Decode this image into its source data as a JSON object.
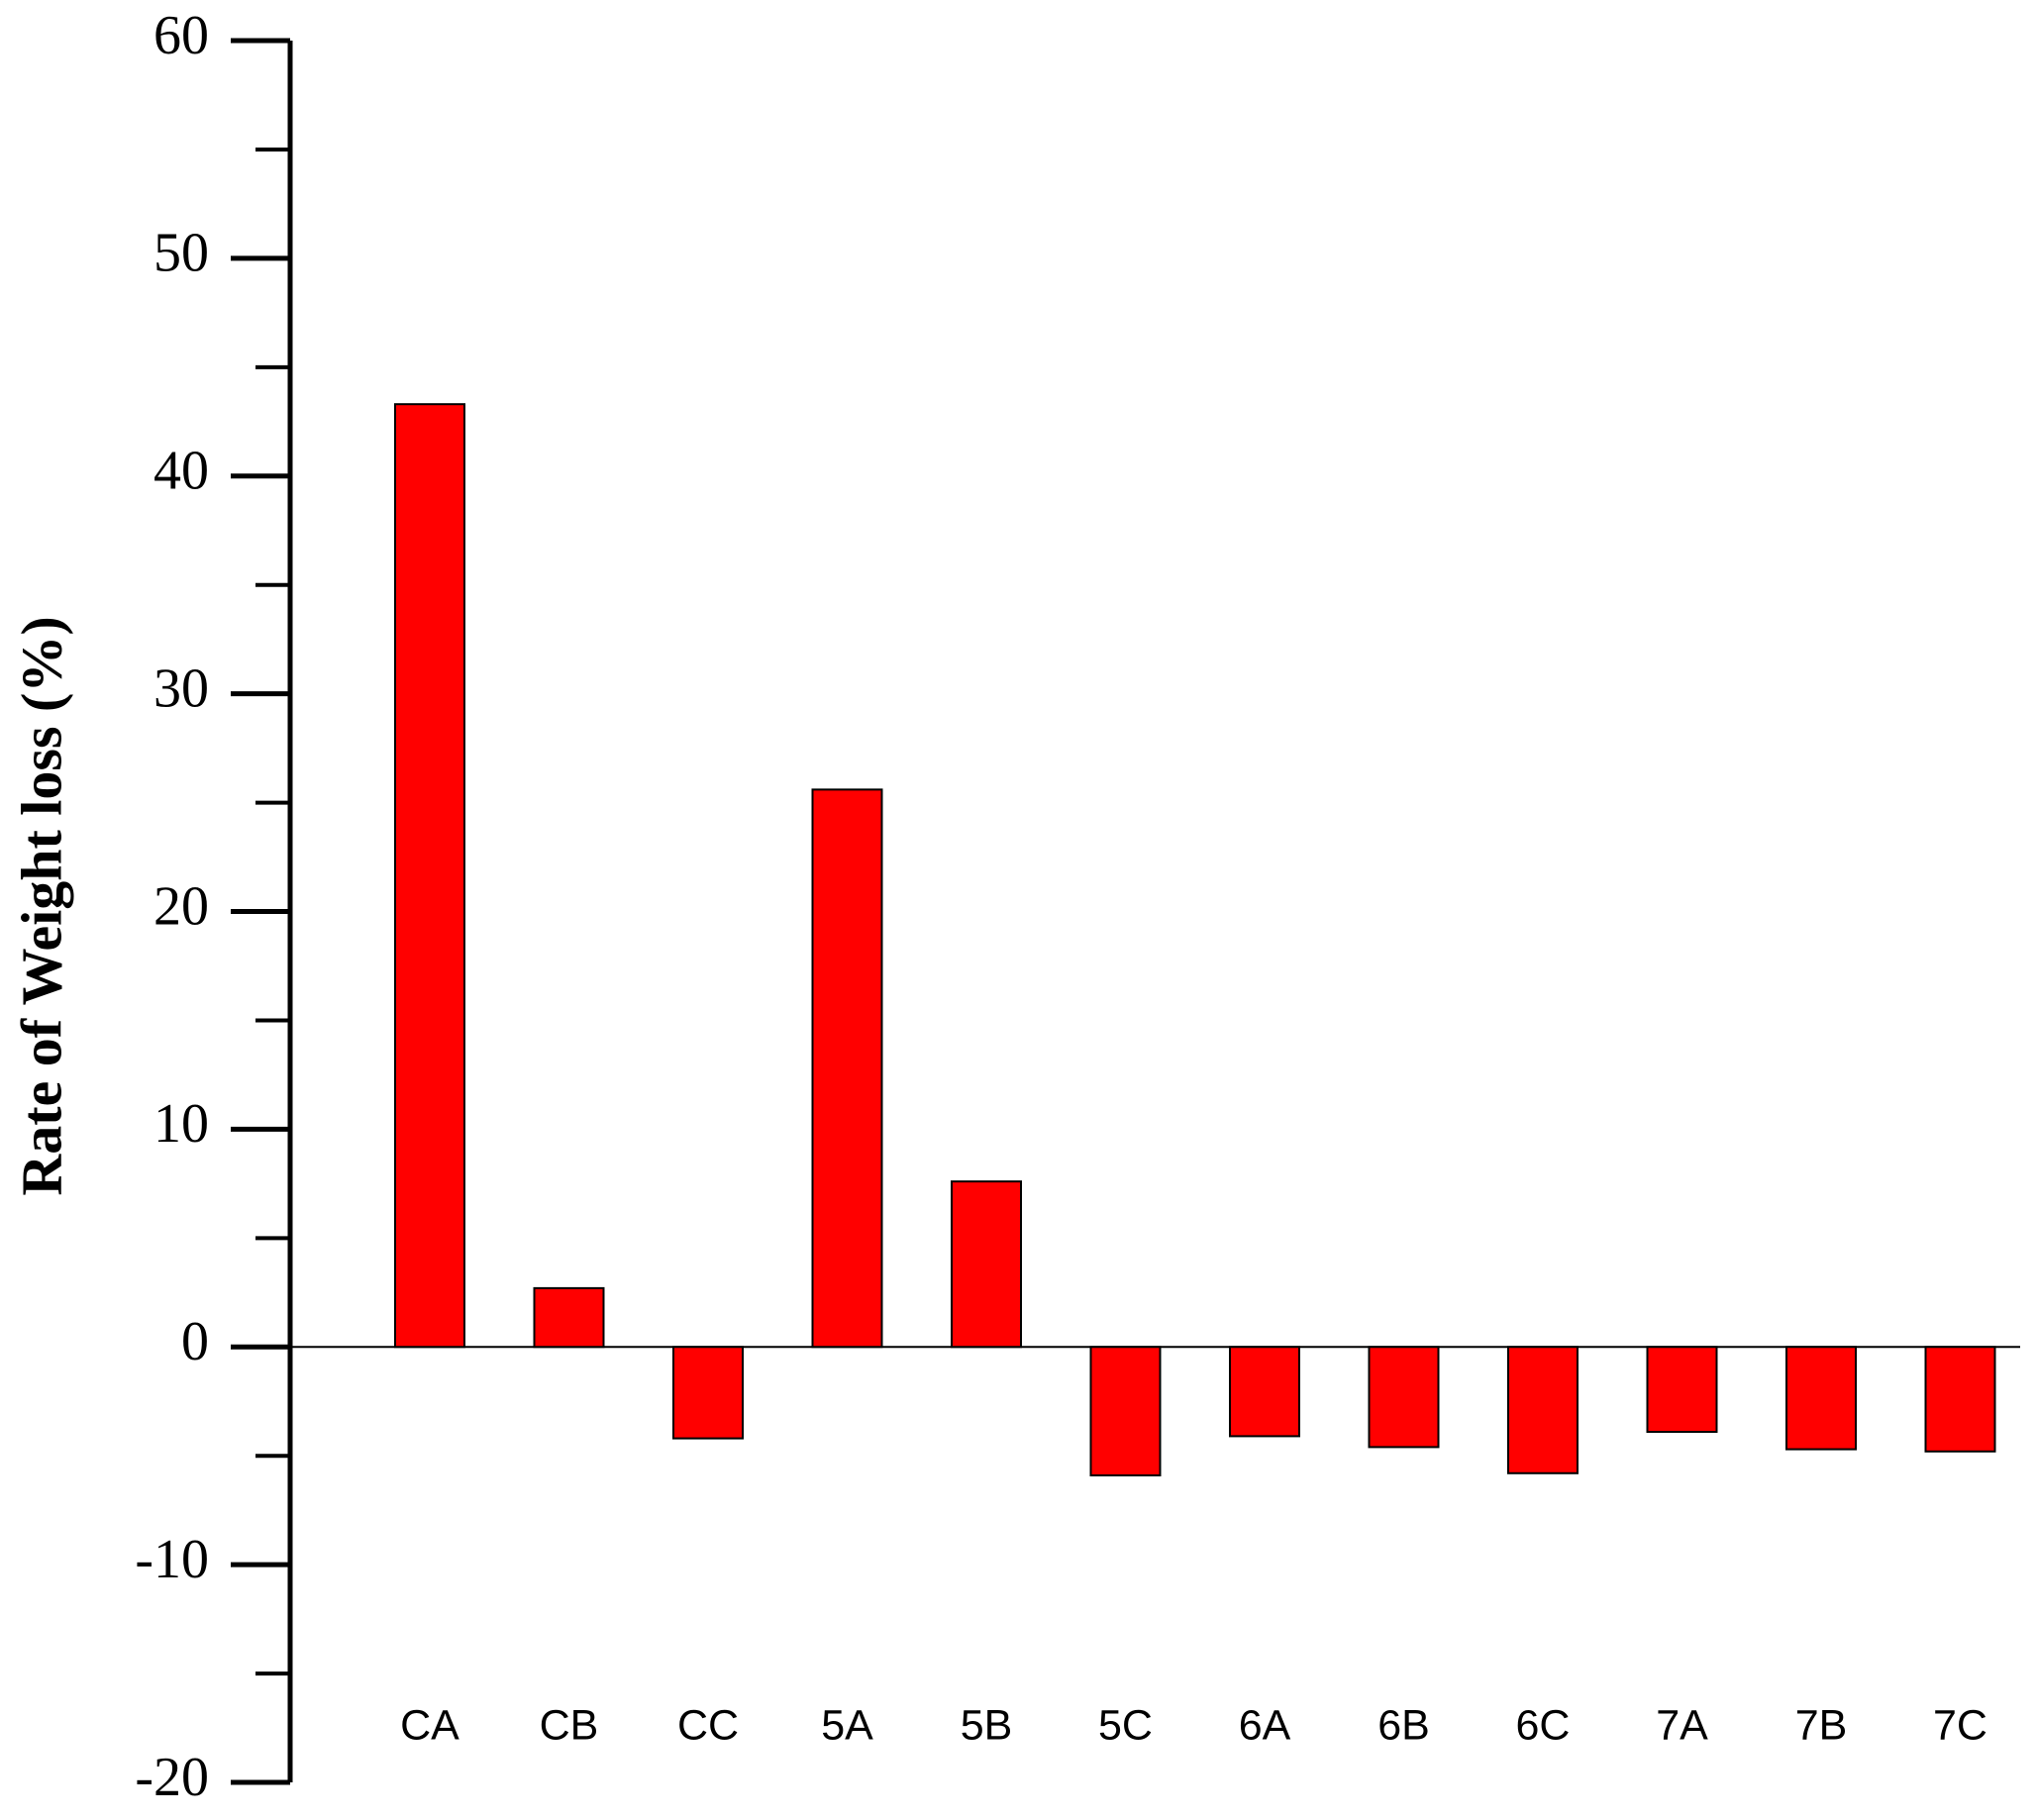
{
  "chart_data": {
    "type": "bar",
    "title": "",
    "xlabel": "",
    "ylabel": "Rate of  Weight  loss (%)",
    "categories": [
      "CA",
      "CB",
      "CC",
      "5A",
      "5B",
      "5C",
      "6A",
      "6B",
      "6C",
      "7A",
      "7B",
      "7C"
    ],
    "values": [
      43.3,
      2.7,
      -4.2,
      25.6,
      7.6,
      -5.9,
      -4.1,
      -4.6,
      -5.8,
      -3.9,
      -4.7,
      -4.8
    ],
    "ylim": [
      -20,
      60
    ],
    "y_ticks": [
      "60",
      "50",
      "40",
      "30",
      "20",
      "10",
      "0",
      "-10",
      "-20"
    ],
    "y_tick_values": [
      60,
      50,
      40,
      30,
      20,
      10,
      0,
      -10,
      -20
    ],
    "grid": false,
    "legend": "none",
    "bar_color": "#ff0000",
    "bar_edge_color": "#000000",
    "axis_color": "#000000",
    "baseline": 0
  }
}
